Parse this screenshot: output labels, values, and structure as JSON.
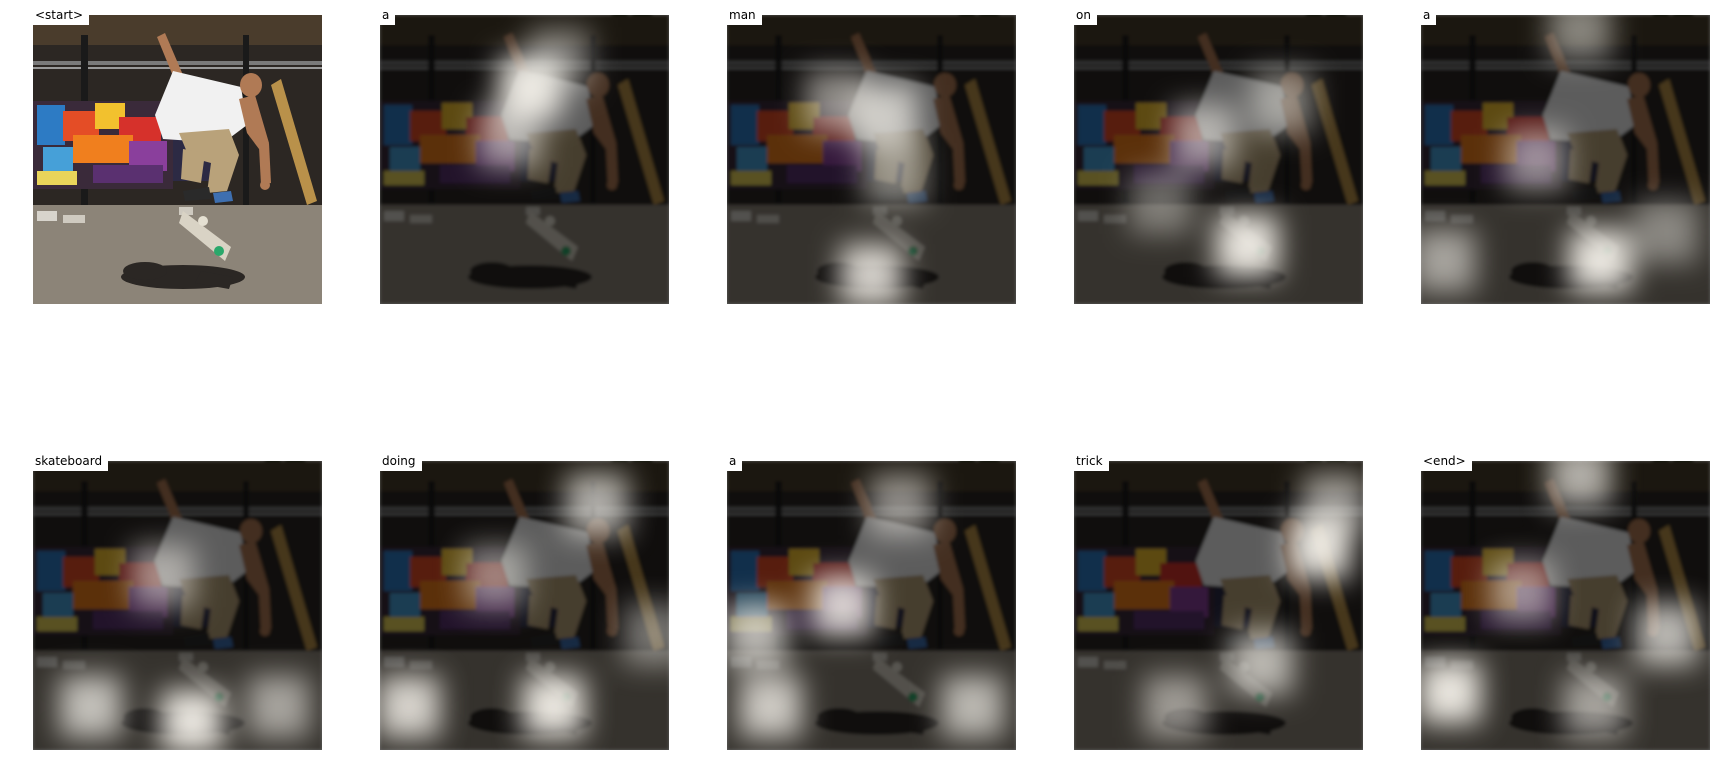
{
  "figure": {
    "panels": [
      {
        "word": "<start>",
        "attention": []
      },
      {
        "word": "a",
        "attention": [
          [
            0.52,
            0.25,
            0.95
          ],
          [
            0.45,
            0.42,
            0.6
          ],
          [
            0.62,
            0.15,
            0.45
          ]
        ]
      },
      {
        "word": "man",
        "attention": [
          [
            0.55,
            0.35,
            0.75
          ],
          [
            0.5,
            0.9,
            0.85
          ],
          [
            0.38,
            0.3,
            0.55
          ],
          [
            0.58,
            0.55,
            0.5
          ]
        ]
      },
      {
        "word": "on",
        "attention": [
          [
            0.6,
            0.8,
            0.95
          ],
          [
            0.45,
            0.42,
            0.6
          ],
          [
            0.72,
            0.3,
            0.5
          ],
          [
            0.3,
            0.65,
            0.4
          ]
        ]
      },
      {
        "word": "a",
        "attention": [
          [
            0.62,
            0.85,
            0.95
          ],
          [
            0.4,
            0.5,
            0.55
          ],
          [
            0.08,
            0.85,
            0.6
          ],
          [
            0.55,
            0.05,
            0.5
          ],
          [
            0.85,
            0.75,
            0.45
          ]
        ]
      },
      {
        "word": "skateboard",
        "attention": [
          [
            0.55,
            0.9,
            0.95
          ],
          [
            0.2,
            0.85,
            0.75
          ],
          [
            0.45,
            0.4,
            0.55
          ],
          [
            0.85,
            0.85,
            0.6
          ]
        ]
      },
      {
        "word": "doing",
        "attention": [
          [
            0.6,
            0.85,
            0.95
          ],
          [
            0.1,
            0.85,
            0.85
          ],
          [
            0.75,
            0.15,
            0.7
          ],
          [
            0.4,
            0.4,
            0.5
          ],
          [
            0.95,
            0.6,
            0.45
          ]
        ]
      },
      {
        "word": "a",
        "attention": [
          [
            0.4,
            0.5,
            0.85
          ],
          [
            0.1,
            0.6,
            0.75
          ],
          [
            0.15,
            0.85,
            0.8
          ],
          [
            0.6,
            0.15,
            0.55
          ],
          [
            0.85,
            0.85,
            0.7
          ]
        ]
      },
      {
        "word": "trick",
        "attention": [
          [
            0.85,
            0.3,
            0.95
          ],
          [
            0.65,
            0.7,
            0.7
          ],
          [
            0.35,
            0.85,
            0.55
          ],
          [
            0.9,
            0.15,
            0.6
          ]
        ]
      },
      {
        "word": "<end>",
        "attention": [
          [
            0.1,
            0.8,
            0.95
          ],
          [
            0.55,
            0.05,
            0.7
          ],
          [
            0.85,
            0.6,
            0.75
          ],
          [
            0.35,
            0.45,
            0.55
          ],
          [
            0.6,
            0.85,
            0.6
          ]
        ]
      }
    ],
    "colors": {
      "background": "#ffffff",
      "sky": "#c9d8e2",
      "canopy": "#4a3c2c",
      "wall": "#2c2723",
      "ground": "#8c8478",
      "skin": "#b07a55",
      "shirt": "#f1f1f1",
      "pants": "#b9a27a",
      "shadow": "#2b2724"
    }
  }
}
